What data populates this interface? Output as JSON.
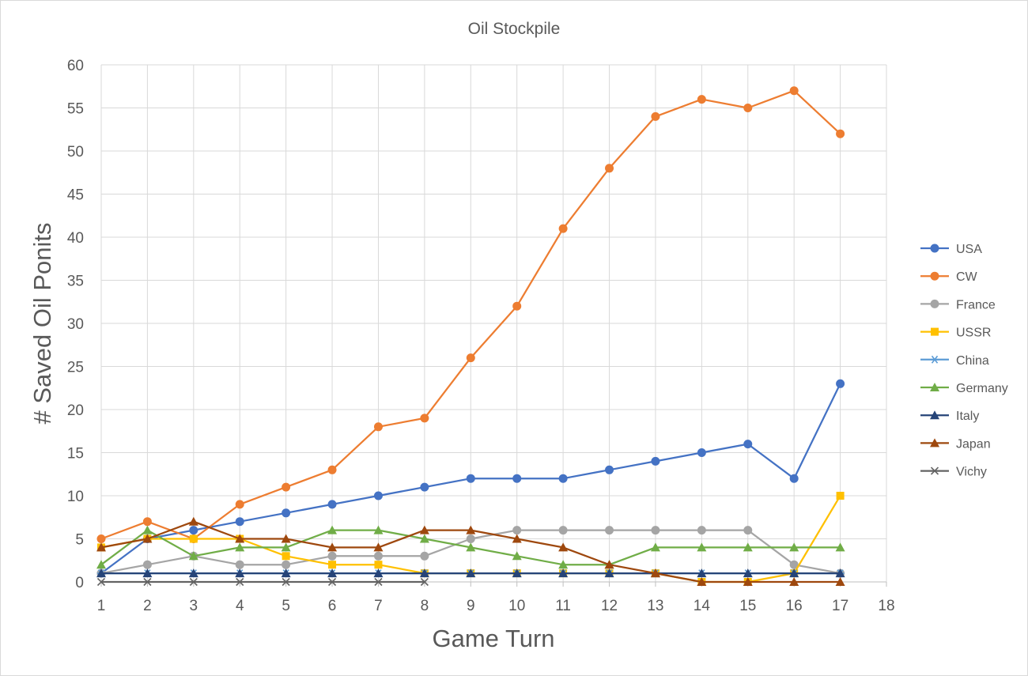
{
  "chart_data": {
    "type": "line",
    "title": "Oil Stockpile",
    "xlabel": "Game Turn",
    "ylabel": "# Saved Oil Ponits",
    "xlim": [
      1,
      18
    ],
    "ylim": [
      0,
      60
    ],
    "x_ticks": [
      "1",
      "2",
      "3",
      "4",
      "5",
      "6",
      "7",
      "8",
      "9",
      "10",
      "11",
      "12",
      "13",
      "14",
      "15",
      "16",
      "17",
      "18"
    ],
    "y_ticks": [
      "0",
      "5",
      "10",
      "15",
      "20",
      "25",
      "30",
      "35",
      "40",
      "45",
      "50",
      "55",
      "60"
    ],
    "grid": true,
    "legend_position": "right",
    "x": [
      1,
      2,
      3,
      4,
      5,
      6,
      7,
      8,
      9,
      10,
      11,
      12,
      13,
      14,
      15,
      16,
      17
    ],
    "series": [
      {
        "name": "USA",
        "color": "#4472c4",
        "marker": "circle",
        "values": [
          1,
          5,
          6,
          7,
          8,
          9,
          10,
          11,
          12,
          12,
          12,
          13,
          14,
          15,
          16,
          12,
          23
        ]
      },
      {
        "name": "CW",
        "color": "#ed7d31",
        "marker": "circle",
        "values": [
          5,
          7,
          5,
          9,
          11,
          13,
          18,
          19,
          26,
          32,
          41,
          48,
          54,
          56,
          55,
          57,
          52
        ]
      },
      {
        "name": "France",
        "color": "#a5a5a5",
        "marker": "circle",
        "values": [
          1,
          2,
          3,
          2,
          2,
          3,
          3,
          3,
          5,
          6,
          6,
          6,
          6,
          6,
          6,
          2,
          1
        ]
      },
      {
        "name": "USSR",
        "color": "#ffc000",
        "marker": "square",
        "values": [
          4,
          5,
          5,
          5,
          3,
          2,
          2,
          1,
          1,
          1,
          1,
          1,
          1,
          0,
          0,
          1,
          10
        ]
      },
      {
        "name": "China",
        "color": "#5b9bd5",
        "marker": "asterisk",
        "values": [
          1,
          1,
          1,
          1,
          1,
          1,
          1,
          1,
          1,
          1,
          1,
          1,
          1,
          1,
          1,
          1,
          1
        ]
      },
      {
        "name": "Germany",
        "color": "#70ad47",
        "marker": "triangle",
        "values": [
          2,
          6,
          3,
          4,
          4,
          6,
          6,
          5,
          4,
          3,
          2,
          2,
          4,
          4,
          4,
          4,
          4
        ]
      },
      {
        "name": "Italy",
        "color": "#264478",
        "marker": "triangle",
        "values": [
          1,
          1,
          1,
          1,
          1,
          1,
          1,
          1,
          1,
          1,
          1,
          1,
          1,
          1,
          1,
          1,
          1
        ]
      },
      {
        "name": "Japan",
        "color": "#9e480e",
        "marker": "triangle",
        "values": [
          4,
          5,
          7,
          5,
          5,
          4,
          4,
          6,
          6,
          5,
          4,
          2,
          1,
          0,
          0,
          0,
          0
        ]
      },
      {
        "name": "Vichy",
        "color": "#636363",
        "marker": "x",
        "values": [
          0,
          0,
          0,
          0,
          0,
          0,
          0,
          0,
          null,
          null,
          null,
          null,
          null,
          null,
          null,
          null,
          null
        ]
      }
    ]
  }
}
